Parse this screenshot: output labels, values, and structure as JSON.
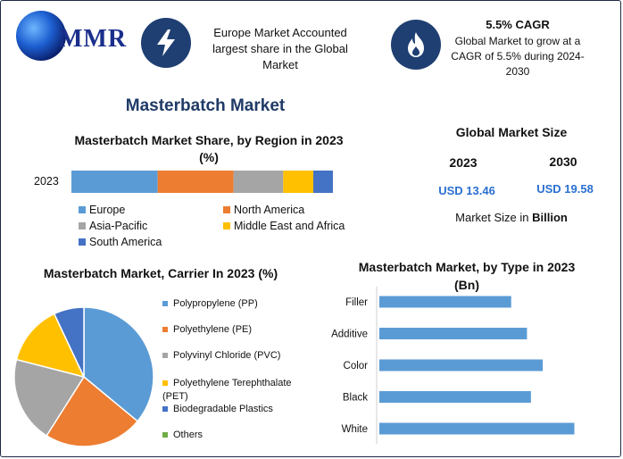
{
  "logo": {
    "text": "MMR"
  },
  "header": {
    "europe_text": "Europe Market Accounted largest share in the Global Market",
    "cagr_title": "5.5% CAGR",
    "cagr_text": "Global Market to grow at a CAGR of 5.5% during 2024-2030"
  },
  "page_title": "Masterbatch Market",
  "market_size": {
    "title": "Global Market Size",
    "year_a": "2023",
    "year_b": "2030",
    "value_a": "USD 13.46",
    "value_b": "USD 19.58",
    "unit_prefix": "Market Size in ",
    "unit_bold": "Billion"
  },
  "colors": {
    "blue": "#5b9bd5",
    "orange": "#ed7d31",
    "gray": "#a5a5a5",
    "yellow": "#ffc000",
    "darkblue": "#4472c4",
    "green": "#70ad47",
    "icon_bg": "#1f3f72",
    "title_blue": "#1f3a66"
  },
  "chart_data": [
    {
      "type": "bar",
      "orientation": "horizontal-stacked",
      "title": "Masterbatch Market Share, by Region in 2023 (%)",
      "categories": [
        "2023"
      ],
      "series": [
        {
          "name": "Europe",
          "values": [
            33
          ],
          "color": "#5b9bd5"
        },
        {
          "name": "North America",
          "values": [
            29
          ],
          "color": "#ed7d31"
        },
        {
          "name": "Asia-Pacific",
          "values": [
            19
          ],
          "color": "#a5a5a5"
        },
        {
          "name": "Middle East and Africa",
          "values": [
            11.5
          ],
          "color": "#ffc000"
        },
        {
          "name": "South America",
          "values": [
            7.5
          ],
          "color": "#4472c4"
        }
      ],
      "legend": "bottom"
    },
    {
      "type": "pie",
      "title": "Masterbatch Market, Carrier In 2023 (%)",
      "slices": [
        {
          "label": "Polypropylene (PP)",
          "value": 36,
          "color": "#5b9bd5"
        },
        {
          "label": "Polyethylene (PE)",
          "value": 23,
          "color": "#ed7d31"
        },
        {
          "label": "Polyvinyl Chloride (PVC)",
          "value": 20,
          "color": "#a5a5a5"
        },
        {
          "label": "Polyethylene Terephthalate (PET)",
          "value": 14,
          "color": "#ffc000"
        },
        {
          "label": "Biodegradable Plastics",
          "value": 7,
          "color": "#4472c4"
        },
        {
          "label": "Others",
          "value": 0,
          "color": "#70ad47"
        }
      ],
      "legend": "right"
    },
    {
      "type": "bar",
      "orientation": "horizontal",
      "title": "Masterbatch Market, by Type in 2023 (Bn)",
      "categories": [
        "Filler",
        "Additive",
        "Color",
        "Black",
        "White"
      ],
      "values": [
        1.67,
        1.87,
        2.07,
        1.92,
        2.47
      ],
      "xlim": [
        0,
        2.6
      ],
      "color": "#5b9bd5"
    }
  ]
}
